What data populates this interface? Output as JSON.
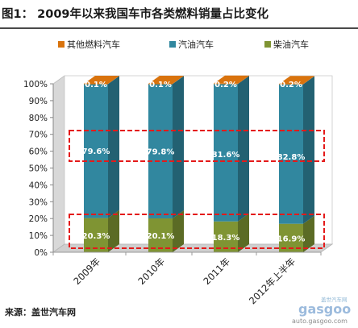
{
  "title": "图1： 2009年以来我国车市各类燃料销量占比变化",
  "source": "来源：盖世汽车网",
  "watermark": {
    "brand": "gasgoo",
    "small_text": "盖世汽车网",
    "url": "auto.gasgoo.com"
  },
  "colors": {
    "other_fuel": "#d9730d",
    "gasoline": "#31879f",
    "diesel": "#7f9433",
    "highlight_box": "#e41a1a",
    "wall": "#dcdcdc"
  },
  "chart_data": {
    "type": "bar",
    "stacked": true,
    "three_d": true,
    "percent_stacked": true,
    "categories": [
      "2009年",
      "2010年",
      "2011年",
      "2012年上半年"
    ],
    "series": [
      {
        "name": "柴油汽车",
        "values": [
          20.3,
          20.1,
          18.3,
          16.9
        ],
        "labels": [
          "20.3%",
          "20.1%",
          "18.3%",
          "16.9%"
        ]
      },
      {
        "name": "汽油汽车",
        "values": [
          79.6,
          79.8,
          81.6,
          82.8
        ],
        "labels": [
          "79.6%",
          "79.8%",
          "81.6%",
          "82.8%"
        ]
      },
      {
        "name": "其他燃料汽车",
        "values": [
          0.1,
          0.1,
          0.2,
          0.2
        ],
        "labels": [
          "0.1%",
          "0.1%",
          "0.2%",
          "0.2%"
        ]
      }
    ],
    "legend": [
      "其他燃料汽车",
      "汽油汽车",
      "柴油汽车"
    ],
    "legend_position": "top",
    "ylim": [
      0,
      100
    ],
    "yticks": [
      "0%",
      "10%",
      "20%",
      "30%",
      "40%",
      "50%",
      "60%",
      "70%",
      "80%",
      "90%",
      "100%"
    ],
    "grid": false,
    "highlight_boxes": [
      "汽油汽车",
      "柴油汽车"
    ]
  }
}
